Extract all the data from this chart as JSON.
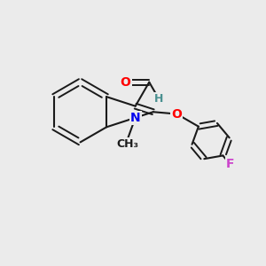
{
  "background_color": "#ebebeb",
  "bond_color": "#1a1a1a",
  "atom_colors": {
    "O": "#ff0000",
    "N": "#0000ee",
    "F": "#cc44cc",
    "H": "#4a9090",
    "C": "#1a1a1a"
  },
  "font_size_atom": 10,
  "fig_width": 3.0,
  "fig_height": 3.0,
  "dpi": 100
}
